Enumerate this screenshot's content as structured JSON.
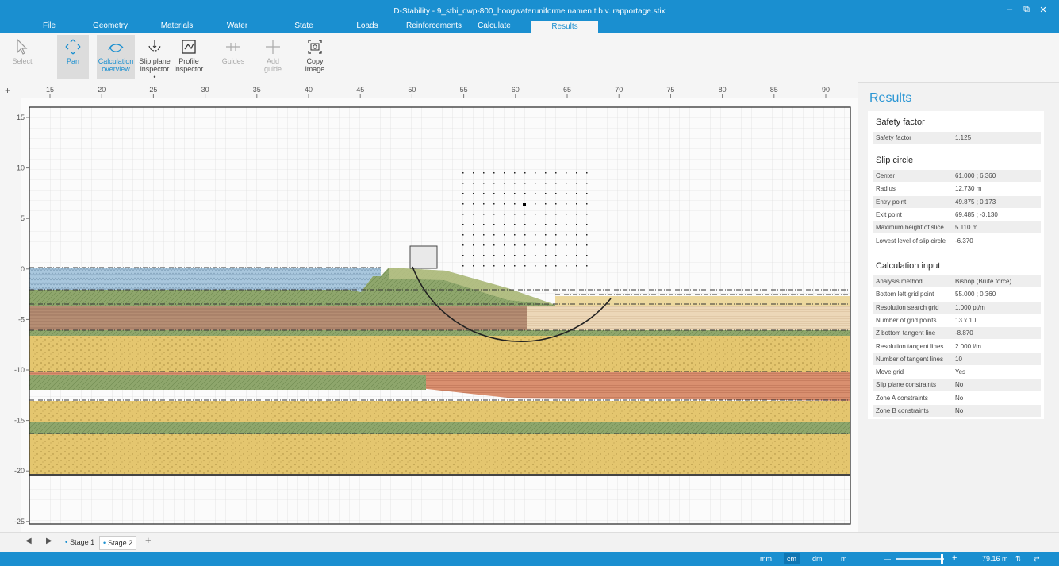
{
  "window": {
    "title": "D-Stability - 9_stbi_dwp-800_hoogwateruniforme namen t.b.v. rapportage.stix",
    "minimize": "–",
    "maximize": "⧉",
    "close": "✕"
  },
  "menu": [
    "File",
    "Geometry",
    "Materials",
    "Water",
    "State",
    "Loads",
    "Reinforcements",
    "Calculate",
    "Results"
  ],
  "ribbon": {
    "select": "Select",
    "pan": "Pan",
    "calc_overview_1": "Calculation",
    "calc_overview_2": "overview",
    "slip_inspector_1": "Slip plane",
    "slip_inspector_2": "inspector •",
    "profile_inspector_1": "Profile",
    "profile_inspector_2": "inspector",
    "guides": "Guides",
    "add_guide_1": "Add",
    "add_guide_2": "guide",
    "copy_image_1": "Copy",
    "copy_image_2": "image"
  },
  "canvas": {
    "x_ticks": [
      "15",
      "20",
      "25",
      "30",
      "35",
      "40",
      "45",
      "50",
      "55",
      "60",
      "65",
      "70",
      "75",
      "80",
      "85",
      "90"
    ],
    "y_ticks": [
      "15",
      "10",
      "5",
      "0",
      "-5",
      "-10",
      "-15",
      "-20",
      "-25"
    ],
    "plus": "+"
  },
  "results": {
    "title": "Results",
    "safety_title": "Safety factor",
    "safety_rows": [
      [
        "Safety factor",
        "1.125"
      ]
    ],
    "slip_title": "Slip circle",
    "slip_rows": [
      [
        "Center",
        "61.000 ; 6.360"
      ],
      [
        "Radius",
        "12.730 m"
      ],
      [
        "Entry point",
        "49.875 ; 0.173"
      ],
      [
        "Exit point",
        "69.485 ; -3.130"
      ],
      [
        "Maximum height of slice",
        "5.110 m"
      ],
      [
        "Lowest level of slip circle",
        "-6.370"
      ]
    ],
    "input_title": "Calculation input",
    "input_rows": [
      [
        "Analysis method",
        "Bishop (Brute force)"
      ],
      [
        "Bottom left grid point",
        "55.000 ; 0.360"
      ],
      [
        "Resolution search grid",
        "1.000 pt/m"
      ],
      [
        "Number of grid points",
        "13 x 10"
      ],
      [
        "Z bottom tangent line",
        "-8.870"
      ],
      [
        "Resolution tangent lines",
        "2.000 l/m"
      ],
      [
        "Number of tangent lines",
        "10"
      ],
      [
        "Move grid",
        "Yes"
      ],
      [
        "Slip plane constraints",
        "No"
      ],
      [
        "Zone A constraints",
        "No"
      ],
      [
        "Zone B constraints",
        "No"
      ]
    ]
  },
  "stages": {
    "prev": "◀",
    "next": "▶",
    "tabs": [
      "Stage 1",
      "Stage 2"
    ],
    "add": "+"
  },
  "status": {
    "units": [
      "mm",
      "cm",
      "dm",
      "m"
    ],
    "active_unit": "cm",
    "zoom_minus": "—",
    "zoom_plus": "+",
    "scale": "79.16 m",
    "sort_icon": "⇅",
    "swap_icon": "⇄"
  },
  "colors": {
    "accent": "#1a8fd0",
    "water": "#a9c7dd",
    "clay_green": "#8ea66c",
    "peat_brown": "#b58d73",
    "sand_yellow": "#e4c66f",
    "red_clay": "#d98f6f",
    "light_sand": "#ecd7b8"
  }
}
